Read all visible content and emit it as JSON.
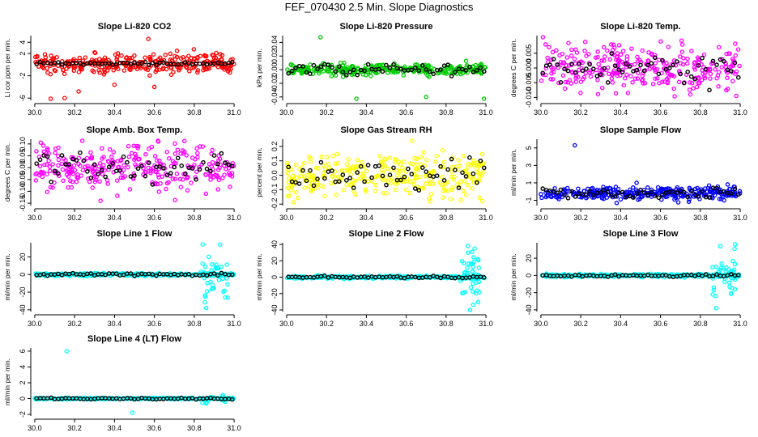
{
  "figure": {
    "title": "FEF_070430  2.5 Min. Slope Diagnostics"
  },
  "chart_data": [
    {
      "type": "scatter",
      "title": "Slope Li-820 CO2",
      "ylabel": "Li cor ppm per min.",
      "xlim": [
        29.98,
        31.02
      ],
      "ylim": [
        -6.4,
        5.2
      ],
      "xticks": [
        30.0,
        30.2,
        30.4,
        30.6,
        30.8,
        31.0
      ],
      "xtick_labels": [
        "30.0",
        "30.2",
        "30.4",
        "30.6",
        "30.8",
        "31.0"
      ],
      "yticks": [
        -6,
        -2,
        2,
        4
      ],
      "ytick_labels": [
        "-6",
        "-2",
        "2",
        "4"
      ],
      "noise": {
        "color": "#ff0000",
        "center": 0.2,
        "spread": 0.9,
        "count": 300,
        "extreme": [
          -6.2,
          4.6
        ]
      },
      "mean": {
        "spread": 0.12
      },
      "outliers": [
        [
          30.57,
          4.6
        ],
        [
          30.08,
          -6.2
        ],
        [
          30.15,
          -6.0
        ],
        [
          30.22,
          -4.8
        ],
        [
          30.4,
          -3.6
        ],
        [
          30.6,
          -4.0
        ]
      ]
    },
    {
      "type": "scatter",
      "title": "Slope Li-820 Pressure",
      "ylabel": "kPa per min.",
      "xlim": [
        29.98,
        31.02
      ],
      "ylim": [
        -0.045,
        0.05
      ],
      "xticks": [
        30.0,
        30.2,
        30.4,
        30.6,
        30.8,
        31.0
      ],
      "xtick_labels": [
        "30.0",
        "30.2",
        "30.4",
        "30.6",
        "30.8",
        "31.0"
      ],
      "yticks": [
        -0.04,
        -0.02,
        0.0,
        0.02,
        0.04
      ],
      "ytick_labels": [
        "-0.04",
        "-0.02",
        "0.00",
        "0.02",
        "0.04"
      ],
      "noise": {
        "color": "#00cc00",
        "center": 0.0,
        "spread": 0.004,
        "count": 300
      },
      "mean": {
        "spread": 0.004
      },
      "outliers": [
        [
          30.17,
          0.048
        ],
        [
          30.35,
          -0.044
        ],
        [
          30.7,
          -0.04
        ],
        [
          30.99,
          -0.044
        ],
        [
          30.9,
          0.013
        ]
      ]
    },
    {
      "type": "scatter",
      "title": "Slope Li-820 Temp.",
      "ylabel": "degrees C per min.",
      "xlim": [
        29.98,
        31.02
      ],
      "ylim": [
        -0.011,
        0.011
      ],
      "xticks": [
        30.0,
        30.2,
        30.4,
        30.6,
        30.8,
        31.0
      ],
      "xtick_labels": [
        "30.0",
        "30.2",
        "30.4",
        "30.6",
        "30.8",
        "31.0"
      ],
      "yticks": [
        -0.01,
        -0.005,
        0.0,
        0.005
      ],
      "ytick_labels": [
        "-0.010",
        "-0.005",
        "0.000",
        "0.005"
      ],
      "noise": {
        "color": "#ff00ff",
        "center": 0.0,
        "spread": 0.0035,
        "count": 300
      },
      "mean": {
        "spread": 0.0025
      },
      "outliers": [
        [
          30.01,
          0.0105
        ],
        [
          30.75,
          -0.009
        ],
        [
          30.98,
          -0.0095
        ]
      ]
    },
    {
      "type": "scatter",
      "title": "Slope Amb. Box Temp.",
      "ylabel": "degrees C per min.",
      "xlim": [
        29.98,
        31.02
      ],
      "ylim": [
        -0.16,
        0.12
      ],
      "xticks": [
        30.0,
        30.2,
        30.4,
        30.6,
        30.8,
        31.0
      ],
      "xtick_labels": [
        "30.0",
        "30.2",
        "30.4",
        "30.6",
        "30.8",
        "31.0"
      ],
      "yticks": [
        -0.15,
        -0.1,
        -0.05,
        0.0,
        0.05,
        0.1
      ],
      "ytick_labels": [
        "-0.15",
        "-0.10",
        "-0.05",
        "0.00",
        "0.05",
        "0.10"
      ],
      "noise": {
        "color": "#ff00ff",
        "center": 0.0,
        "spread": 0.045,
        "count": 300
      },
      "mean": {
        "spread": 0.03
      },
      "outliers": [
        [
          30.33,
          -0.14
        ],
        [
          30.62,
          0.11
        ]
      ]
    },
    {
      "type": "scatter",
      "title": "Slope Gas Stream RH",
      "ylabel": "percent per min.",
      "xlim": [
        29.98,
        31.02
      ],
      "ylim": [
        -0.21,
        0.25
      ],
      "xticks": [
        30.0,
        30.2,
        30.4,
        30.6,
        30.8,
        31.0
      ],
      "xtick_labels": [
        "30.0",
        "30.2",
        "30.4",
        "30.6",
        "30.8",
        "31.0"
      ],
      "yticks": [
        -0.2,
        -0.1,
        0.0,
        0.1,
        0.2
      ],
      "ytick_labels": [
        "-0.2",
        "-0.1",
        "0.0",
        "0.1",
        "0.2"
      ],
      "noise": {
        "color": "#ffff00",
        "center": 0.0,
        "spread": 0.07,
        "count": 300
      },
      "mean": {
        "spread": 0.05
      },
      "outliers": [
        [
          30.63,
          0.24
        ],
        [
          30.72,
          -0.18
        ]
      ]
    },
    {
      "type": "scatter",
      "title": "Slope Sample Flow",
      "ylabel": "ml/min per min.",
      "xlim": [
        29.98,
        31.02
      ],
      "ylim": [
        -1.6,
        6.0
      ],
      "xticks": [
        30.0,
        30.2,
        30.4,
        30.6,
        30.8,
        31.0
      ],
      "xtick_labels": [
        "30.0",
        "30.2",
        "30.4",
        "30.6",
        "30.8",
        "31.0"
      ],
      "yticks": [
        -1,
        1,
        3,
        5
      ],
      "ytick_labels": [
        "-1",
        "1",
        "3",
        "5"
      ],
      "noise": {
        "color": "#0000ff",
        "center": -0.2,
        "spread": 0.35,
        "count": 300
      },
      "mean": {
        "spread": 0.25
      },
      "outliers": [
        [
          30.17,
          5.3
        ],
        [
          30.38,
          -1.3
        ],
        [
          30.48,
          1.0
        ]
      ]
    },
    {
      "type": "scatter",
      "title": "Slope Line 1 Flow",
      "ylabel": "ml/min per min.",
      "xlim": [
        29.98,
        31.02
      ],
      "ylim": [
        -42,
        36
      ],
      "xticks": [
        30.0,
        30.2,
        30.4,
        30.6,
        30.8,
        31.0
      ],
      "xtick_labels": [
        "30.0",
        "30.2",
        "30.4",
        "30.6",
        "30.8",
        "31.0"
      ],
      "yticks": [
        -40,
        -20,
        0,
        20
      ],
      "ytick_labels": [
        "-40",
        "-20",
        "0",
        "20"
      ],
      "noise": {
        "color": "#00ffff",
        "center": 0.0,
        "spread": 0.8,
        "count": 300
      },
      "mean": {
        "spread": 0.6
      },
      "burst": {
        "from": 30.83,
        "to": 30.97,
        "spread": 14,
        "count": 40
      },
      "outliers": [
        [
          30.93,
          34
        ],
        [
          30.86,
          -38
        ]
      ]
    },
    {
      "type": "scatter",
      "title": "Slope Line 2 Flow",
      "ylabel": "ml/min per min.",
      "xlim": [
        29.98,
        31.02
      ],
      "ylim": [
        -42,
        42
      ],
      "xticks": [
        30.0,
        30.2,
        30.4,
        30.6,
        30.8,
        31.0
      ],
      "xtick_labels": [
        "30.0",
        "30.2",
        "30.4",
        "30.6",
        "30.8",
        "31.0"
      ],
      "yticks": [
        -40,
        -20,
        0,
        20,
        40
      ],
      "ytick_labels": [
        "-40",
        "-20",
        "0",
        "20",
        "40"
      ],
      "noise": {
        "color": "#00ffff",
        "center": 0.0,
        "spread": 0.9,
        "count": 300
      },
      "mean": {
        "spread": 0.7
      },
      "burst": {
        "from": 30.87,
        "to": 30.97,
        "spread": 13,
        "count": 45
      },
      "outliers": [
        [
          30.91,
          38
        ],
        [
          30.92,
          -40
        ]
      ]
    },
    {
      "type": "scatter",
      "title": "Slope Line 3 Flow",
      "ylabel": "ml/min per min.",
      "xlim": [
        29.98,
        31.02
      ],
      "ylim": [
        -42,
        38
      ],
      "xticks": [
        30.0,
        30.2,
        30.4,
        30.6,
        30.8,
        31.0
      ],
      "xtick_labels": [
        "30.0",
        "30.2",
        "30.4",
        "30.6",
        "30.8",
        "31.0"
      ],
      "yticks": [
        -40,
        -20,
        0,
        20
      ],
      "ytick_labels": [
        "-40",
        "-20",
        "0",
        "20"
      ],
      "noise": {
        "color": "#00ffff",
        "center": 0.0,
        "spread": 0.9,
        "count": 300
      },
      "mean": {
        "spread": 0.7
      },
      "burst": {
        "from": 30.86,
        "to": 30.98,
        "spread": 14,
        "count": 40
      },
      "outliers": [
        [
          30.9,
          34
        ],
        [
          30.88,
          -38
        ]
      ]
    },
    {
      "type": "scatter",
      "title": "Slope Line 4 (LT) Flow",
      "ylabel": "ml/min per min.",
      "xlim": [
        29.98,
        31.02
      ],
      "ylim": [
        -2.2,
        6.4
      ],
      "xticks": [
        30.0,
        30.2,
        30.4,
        30.6,
        30.8,
        31.0
      ],
      "xtick_labels": [
        "30.0",
        "30.2",
        "30.4",
        "30.6",
        "30.8",
        "31.0"
      ],
      "yticks": [
        -2,
        0,
        2,
        4,
        6
      ],
      "ytick_labels": [
        "-2",
        "0",
        "2",
        "4",
        "6"
      ],
      "noise": {
        "color": "#00ffff",
        "center": 0.0,
        "spread": 0.05,
        "count": 300
      },
      "mean": {
        "spread": 0.05
      },
      "burst": {
        "from": 30.84,
        "to": 30.98,
        "spread": 0.3,
        "count": 20
      },
      "outliers": [
        [
          30.16,
          6.0
        ],
        [
          30.49,
          -1.8
        ]
      ]
    }
  ]
}
